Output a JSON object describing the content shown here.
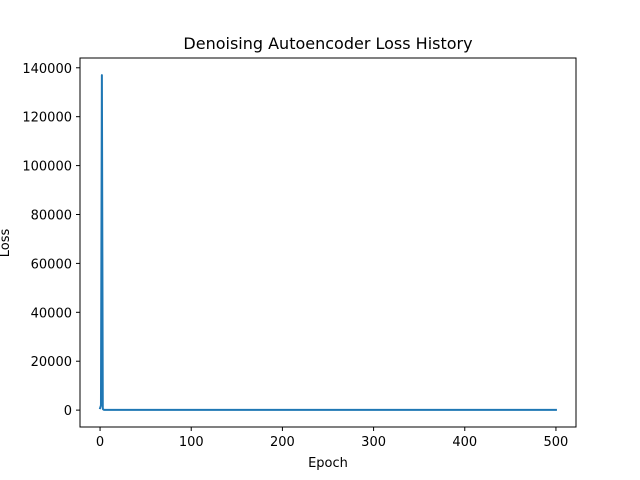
{
  "chart_data": {
    "type": "line",
    "title": "Denoising Autoencoder Loss History",
    "xlabel": "Epoch",
    "ylabel": "Loss",
    "xlim": [
      -22,
      522
    ],
    "ylim": [
      -6900,
      144000
    ],
    "xticks": [
      0,
      100,
      200,
      300,
      400,
      500
    ],
    "yticks": [
      0,
      20000,
      40000,
      60000,
      80000,
      100000,
      120000,
      140000
    ],
    "grid": false,
    "series": [
      {
        "color": "#1f77b4",
        "x": [
          0,
          1,
          2,
          3,
          4,
          5,
          10,
          25,
          50,
          100,
          200,
          300,
          400,
          500
        ],
        "y": [
          800,
          2000,
          137000,
          500,
          150,
          100,
          90,
          85,
          80,
          80,
          80,
          80,
          80,
          80
        ]
      }
    ]
  }
}
